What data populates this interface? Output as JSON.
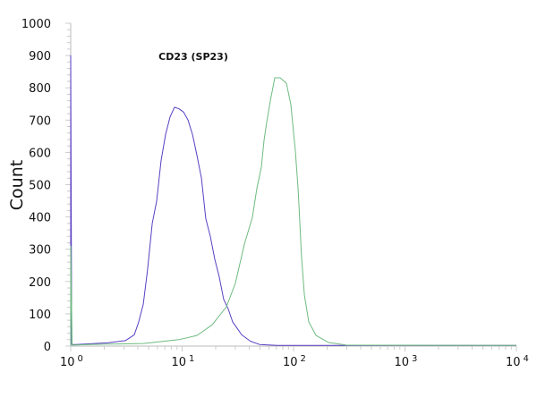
{
  "chart_data": {
    "type": "line",
    "title": "CD23 (SP23)",
    "xlabel": "",
    "ylabel": "Count",
    "x_scale": "log",
    "xlim": [
      1,
      10000
    ],
    "ylim": [
      0,
      1000
    ],
    "x_ticks": [
      {
        "base": "10",
        "exp": "0"
      },
      {
        "base": "10",
        "exp": "1"
      },
      {
        "base": "10",
        "exp": "2"
      },
      {
        "base": "10",
        "exp": "3"
      },
      {
        "base": "10",
        "exp": "4"
      }
    ],
    "y_ticks": [
      "0",
      "100",
      "200",
      "300",
      "400",
      "500",
      "600",
      "700",
      "800",
      "900",
      "1000"
    ],
    "grid": false,
    "series": [
      {
        "color": "#5a3fc2",
        "points": [
          [
            1.0,
            0
          ],
          [
            1.0,
            900
          ],
          [
            1.02,
            5
          ],
          [
            1.12,
            5
          ],
          [
            2.13,
            10
          ],
          [
            3.09,
            17
          ],
          [
            3.72,
            35
          ],
          [
            4.08,
            75
          ],
          [
            4.48,
            130
          ],
          [
            4.91,
            240
          ],
          [
            5.39,
            380
          ],
          [
            5.91,
            450
          ],
          [
            6.48,
            575
          ],
          [
            7.1,
            655
          ],
          [
            7.79,
            710
          ],
          [
            8.55,
            740
          ],
          [
            9.37,
            735
          ],
          [
            10.3,
            725
          ],
          [
            11.3,
            700
          ],
          [
            12.4,
            655
          ],
          [
            13.6,
            590
          ],
          [
            14.9,
            520
          ],
          [
            16.3,
            395
          ],
          [
            17.9,
            340
          ],
          [
            19.6,
            270
          ],
          [
            21.5,
            215
          ],
          [
            23.6,
            145
          ],
          [
            25.9,
            115
          ],
          [
            28.4,
            75
          ],
          [
            31.2,
            55
          ],
          [
            34.2,
            35
          ],
          [
            41.1,
            15
          ],
          [
            49.5,
            5
          ],
          [
            71.6,
            2
          ],
          [
            10000,
            2
          ]
        ]
      },
      {
        "color": "#6dbb80",
        "points": [
          [
            1.0,
            0
          ],
          [
            1.0,
            310
          ],
          [
            1.03,
            3
          ],
          [
            1.47,
            5
          ],
          [
            4.48,
            8
          ],
          [
            9.37,
            20
          ],
          [
            13.6,
            33
          ],
          [
            18.6,
            66
          ],
          [
            25.0,
            122
          ],
          [
            30.0,
            194
          ],
          [
            36.2,
            316
          ],
          [
            42.7,
            399
          ],
          [
            46.9,
            490
          ],
          [
            51.4,
            554
          ],
          [
            54.3,
            637
          ],
          [
            57.4,
            693
          ],
          [
            61.8,
            759
          ],
          [
            67.8,
            831
          ],
          [
            75.8,
            831
          ],
          [
            86.3,
            814
          ],
          [
            94.6,
            748
          ],
          [
            104,
            601
          ],
          [
            110,
            482
          ],
          [
            118,
            277
          ],
          [
            125,
            158
          ],
          [
            137,
            75
          ],
          [
            159,
            33
          ],
          [
            206,
            11
          ],
          [
            298,
            3
          ],
          [
            10000,
            2
          ]
        ]
      }
    ]
  }
}
